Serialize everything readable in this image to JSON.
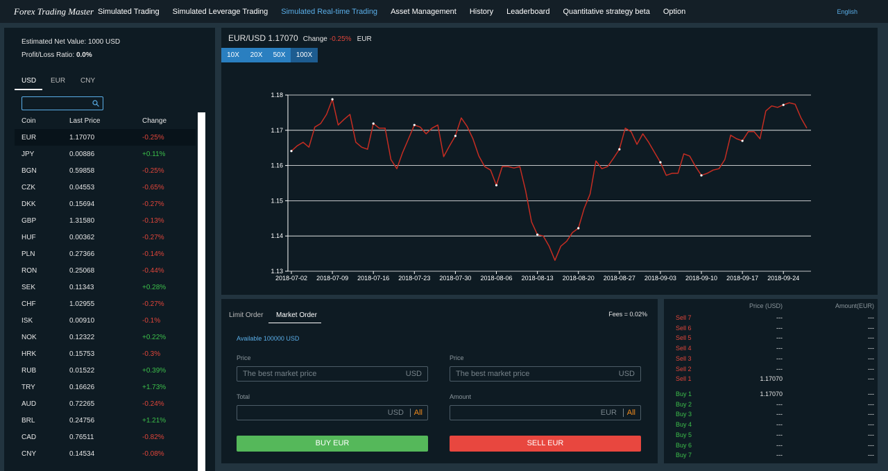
{
  "nav": {
    "brand": "Forex Trading Master",
    "items": [
      "Simulated Trading",
      "Simulated Leverage Trading",
      "Simulated Real-time Trading",
      "Asset Management",
      "History",
      "Leaderboard",
      "Quantitative strategy beta",
      "Option"
    ],
    "language": "English"
  },
  "account": {
    "net_value": "Estimated Net Value: 1000 USD",
    "pl_label": "Profit/Loss Ratio:",
    "pl_value": "0.0%"
  },
  "currency_tabs": [
    "USD",
    "EUR",
    "CNY"
  ],
  "coin_table": {
    "columns": [
      "Coin",
      "Last Price",
      "Change"
    ],
    "rows": [
      [
        "EUR",
        "1.17070",
        "-0.25%"
      ],
      [
        "JPY",
        "0.00886",
        "+0.11%"
      ],
      [
        "BGN",
        "0.59858",
        "-0.25%"
      ],
      [
        "CZK",
        "0.04553",
        "-0.65%"
      ],
      [
        "DKK",
        "0.15694",
        "-0.27%"
      ],
      [
        "GBP",
        "1.31580",
        "-0.13%"
      ],
      [
        "HUF",
        "0.00362",
        "-0.27%"
      ],
      [
        "PLN",
        "0.27366",
        "-0.14%"
      ],
      [
        "RON",
        "0.25068",
        "-0.44%"
      ],
      [
        "SEK",
        "0.11343",
        "+0.28%"
      ],
      [
        "CHF",
        "1.02955",
        "-0.27%"
      ],
      [
        "ISK",
        "0.00910",
        "-0.1%"
      ],
      [
        "NOK",
        "0.12322",
        "+0.22%"
      ],
      [
        "HRK",
        "0.15753",
        "-0.3%"
      ],
      [
        "RUB",
        "0.01522",
        "+0.39%"
      ],
      [
        "TRY",
        "0.16626",
        "+1.73%"
      ],
      [
        "AUD",
        "0.72265",
        "-0.24%"
      ],
      [
        "BRL",
        "0.24756",
        "+1.21%"
      ],
      [
        "CAD",
        "0.76511",
        "-0.82%"
      ],
      [
        "CNY",
        "0.14534",
        "-0.08%"
      ]
    ]
  },
  "chart_header": {
    "pair": "EUR/USD 1.17070",
    "change_label": "Change",
    "change_value": "-0.25%",
    "currency": "EUR"
  },
  "leverage": [
    "10X",
    "20X",
    "50X",
    "100X"
  ],
  "chart_data": {
    "type": "line",
    "color": "#c62d22",
    "grid": true,
    "x": [
      "2018-07-02",
      "2018-07-03",
      "2018-07-04",
      "2018-07-05",
      "2018-07-06",
      "2018-07-07",
      "2018-07-08",
      "2018-07-09",
      "2018-07-10",
      "2018-07-11",
      "2018-07-12",
      "2018-07-13",
      "2018-07-14",
      "2018-07-15",
      "2018-07-16",
      "2018-07-17",
      "2018-07-18",
      "2018-07-19",
      "2018-07-20",
      "2018-07-21",
      "2018-07-22",
      "2018-07-23",
      "2018-07-24",
      "2018-07-25",
      "2018-07-26",
      "2018-07-27",
      "2018-07-28",
      "2018-07-29",
      "2018-07-30",
      "2018-07-31",
      "2018-08-01",
      "2018-08-02",
      "2018-08-03",
      "2018-08-04",
      "2018-08-05",
      "2018-08-06",
      "2018-08-07",
      "2018-08-08",
      "2018-08-09",
      "2018-08-10",
      "2018-08-11",
      "2018-08-12",
      "2018-08-13",
      "2018-08-14",
      "2018-08-15",
      "2018-08-16",
      "2018-08-17",
      "2018-08-18",
      "2018-08-19",
      "2018-08-20",
      "2018-08-21",
      "2018-08-22",
      "2018-08-23",
      "2018-08-24",
      "2018-08-25",
      "2018-08-26",
      "2018-08-27",
      "2018-08-28",
      "2018-08-29",
      "2018-08-30",
      "2018-08-31",
      "2018-09-01",
      "2018-09-02",
      "2018-09-03",
      "2018-09-04",
      "2018-09-05",
      "2018-09-06",
      "2018-09-07",
      "2018-09-08",
      "2018-09-09",
      "2018-09-10",
      "2018-09-11",
      "2018-09-12",
      "2018-09-13",
      "2018-09-14",
      "2018-09-15",
      "2018-09-16",
      "2018-09-17",
      "2018-09-18",
      "2018-09-19",
      "2018-09-20",
      "2018-09-21",
      "2018-09-22",
      "2018-09-23",
      "2018-09-24",
      "2018-09-25",
      "2018-09-26",
      "2018-09-27",
      "2018-09-28"
    ],
    "values": [
      1.1641,
      1.1656,
      1.1666,
      1.1652,
      1.1709,
      1.1719,
      1.1745,
      1.1788,
      1.1715,
      1.1731,
      1.1745,
      1.1666,
      1.1652,
      1.1646,
      1.1719,
      1.1706,
      1.1706,
      1.1617,
      1.1591,
      1.1637,
      1.1676,
      1.1715,
      1.1709,
      1.169,
      1.1706,
      1.1715,
      1.1625,
      1.1656,
      1.1684,
      1.1735,
      1.1711,
      1.1676,
      1.1627,
      1.1597,
      1.1587,
      1.1544,
      1.1597,
      1.1597,
      1.1593,
      1.1597,
      1.1528,
      1.144,
      1.1404,
      1.14,
      1.1371,
      1.1331,
      1.1371,
      1.1385,
      1.141,
      1.1422,
      1.1479,
      1.1519,
      1.1613,
      1.1591,
      1.1597,
      1.1621,
      1.1646,
      1.1706,
      1.1696,
      1.166,
      1.169,
      1.1666,
      1.1637,
      1.1609,
      1.1572,
      1.1578,
      1.1578,
      1.1633,
      1.1627,
      1.1597,
      1.1572,
      1.1578,
      1.1587,
      1.1591,
      1.1617,
      1.1686,
      1.1676,
      1.167,
      1.1696,
      1.1696,
      1.1676,
      1.1755,
      1.1769,
      1.1765,
      1.1772,
      1.1778,
      1.1774,
      1.1735,
      1.1706
    ],
    "xlim": [
      "2018-07-02",
      "2018-09-28"
    ],
    "xticks": [
      "2018-07-02",
      "2018-07-09",
      "2018-07-16",
      "2018-07-23",
      "2018-07-30",
      "2018-08-06",
      "2018-08-13",
      "2018-08-20",
      "2018-08-27",
      "2018-09-03",
      "2018-09-10",
      "2018-09-17",
      "2018-09-24"
    ],
    "ylim": [
      1.13,
      1.18
    ],
    "yticks": [
      1.13,
      1.14,
      1.15,
      1.16,
      1.17,
      1.18
    ]
  },
  "order_form": {
    "tabs": [
      "Limit Order",
      "Market Order"
    ],
    "fees": "Fees = 0.02%",
    "available_label": "Available",
    "available_value": "100000 USD",
    "buy": {
      "price_label": "Price",
      "price_placeholder": "The best market price",
      "price_unit": "USD",
      "total_label": "Total",
      "total_unit": "USD",
      "all": "All",
      "button": "BUY EUR"
    },
    "sell": {
      "price_label": "Price",
      "price_placeholder": "The best market price",
      "price_unit": "USD",
      "amount_label": "Amount",
      "amount_unit": "EUR",
      "all": "All",
      "button": "SELL EUR"
    }
  },
  "order_book": {
    "columns": [
      "Price (USD)",
      "Amount(EUR)"
    ],
    "sells": [
      [
        "Sell 7",
        "---",
        "---"
      ],
      [
        "Sell 6",
        "---",
        "---"
      ],
      [
        "Sell 5",
        "---",
        "---"
      ],
      [
        "Sell 4",
        "---",
        "---"
      ],
      [
        "Sell 3",
        "---",
        "---"
      ],
      [
        "Sell 2",
        "---",
        "---"
      ],
      [
        "Sell 1",
        "1.17070",
        "---"
      ]
    ],
    "buys": [
      [
        "Buy 1",
        "1.17070",
        "---"
      ],
      [
        "Buy 2",
        "---",
        "---"
      ],
      [
        "Buy 3",
        "---",
        "---"
      ],
      [
        "Buy 4",
        "---",
        "---"
      ],
      [
        "Buy 5",
        "---",
        "---"
      ],
      [
        "Buy 6",
        "---",
        "---"
      ],
      [
        "Buy 7",
        "---",
        "---"
      ]
    ]
  }
}
